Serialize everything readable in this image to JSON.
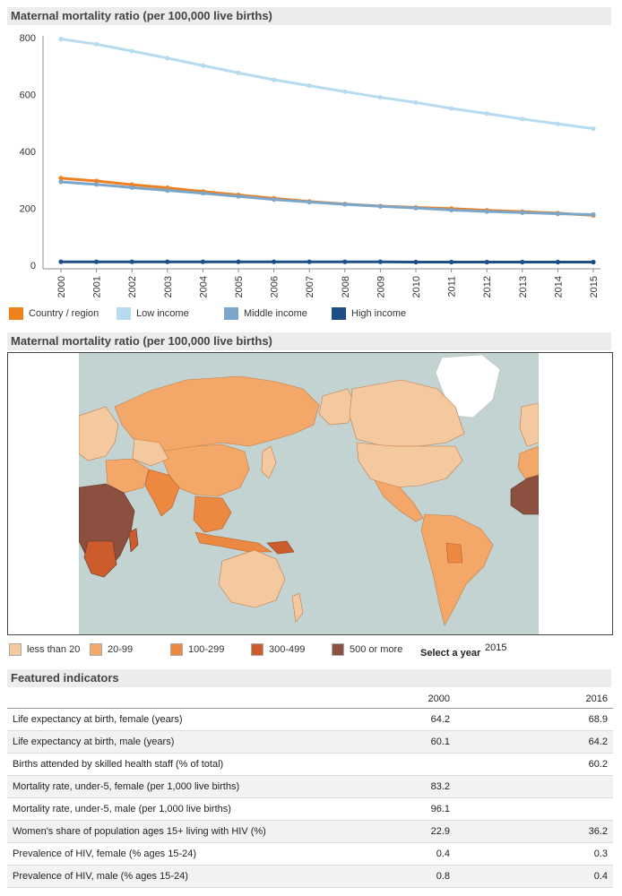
{
  "chart_section": {
    "title": "Maternal mortality ratio (per 100,000 live births)"
  },
  "chart_data": {
    "type": "line",
    "title": "Maternal mortality ratio (per 100,000 live births)",
    "x": [
      "2000",
      "2001",
      "2002",
      "2003",
      "2004",
      "2005",
      "2006",
      "2007",
      "2008",
      "2009",
      "2010",
      "2011",
      "2012",
      "2013",
      "2014",
      "2015"
    ],
    "ylim": [
      0,
      800
    ],
    "yticks": [
      0,
      200,
      400,
      600,
      800
    ],
    "grid": false,
    "legend": "bottom",
    "series": [
      {
        "name": "Country / region",
        "color": "#f07f1e",
        "values": [
          306,
          296,
          283,
          272,
          259,
          247,
          235,
          224,
          215,
          208,
          203,
          199,
          193,
          188,
          183,
          175
        ]
      },
      {
        "name": "Low income",
        "color": "#b6dbef",
        "values": [
          795,
          777,
          753,
          728,
          702,
          676,
          652,
          631,
          610,
          590,
          572,
          551,
          533,
          514,
          497,
          480
        ]
      },
      {
        "name": "Middle income",
        "color": "#7ba6ca",
        "values": [
          293,
          284,
          273,
          263,
          253,
          242,
          231,
          222,
          214,
          207,
          201,
          194,
          189,
          185,
          181,
          178
        ]
      },
      {
        "name": "High income",
        "color": "#1f4e86",
        "values": [
          12,
          12,
          12,
          12,
          12,
          12,
          12,
          12,
          12,
          12,
          11,
          11,
          11,
          11,
          11,
          11
        ]
      }
    ]
  },
  "map_section": {
    "title": "Maternal mortality ratio (per 100,000 live births)",
    "ocean_color": "#c3d3d1",
    "legend": [
      {
        "label": "less than 20",
        "color": "#f5c9a0"
      },
      {
        "label": "20-99",
        "color": "#f3a86a"
      },
      {
        "label": "100-299",
        "color": "#ec8840"
      },
      {
        "label": "300-499",
        "color": "#cc5c2c"
      },
      {
        "label": "500 or more",
        "color": "#8b5040"
      }
    ],
    "select_year_label": "Select a year",
    "select_year_value": "2015"
  },
  "indicators": {
    "title": "Featured indicators",
    "columns": [
      "",
      "2000",
      "2016"
    ],
    "rows": [
      {
        "label": "Life expectancy at birth, female (years)",
        "v2000": "64.2",
        "v2016": "68.9"
      },
      {
        "label": "Life expectancy at birth, male (years)",
        "v2000": "60.1",
        "v2016": "64.2"
      },
      {
        "label": "Births attended by skilled health staff (% of total)",
        "v2000": "",
        "v2016": "60.2"
      },
      {
        "label": "Mortality rate, under-5, female (per 1,000 live births)",
        "v2000": "83.2",
        "v2016": ""
      },
      {
        "label": "Mortality rate, under-5, male (per 1,000 live births)",
        "v2000": "96.1",
        "v2016": ""
      },
      {
        "label": "Women's share of population ages 15+ living with HIV (%)",
        "v2000": "22.9",
        "v2016": "36.2"
      },
      {
        "label": "Prevalence of HIV, female (% ages 15-24)",
        "v2000": "0.4",
        "v2016": "0.3"
      },
      {
        "label": "Prevalence of HIV, male (% ages 15-24)",
        "v2000": "0.8",
        "v2016": "0.4"
      }
    ]
  }
}
